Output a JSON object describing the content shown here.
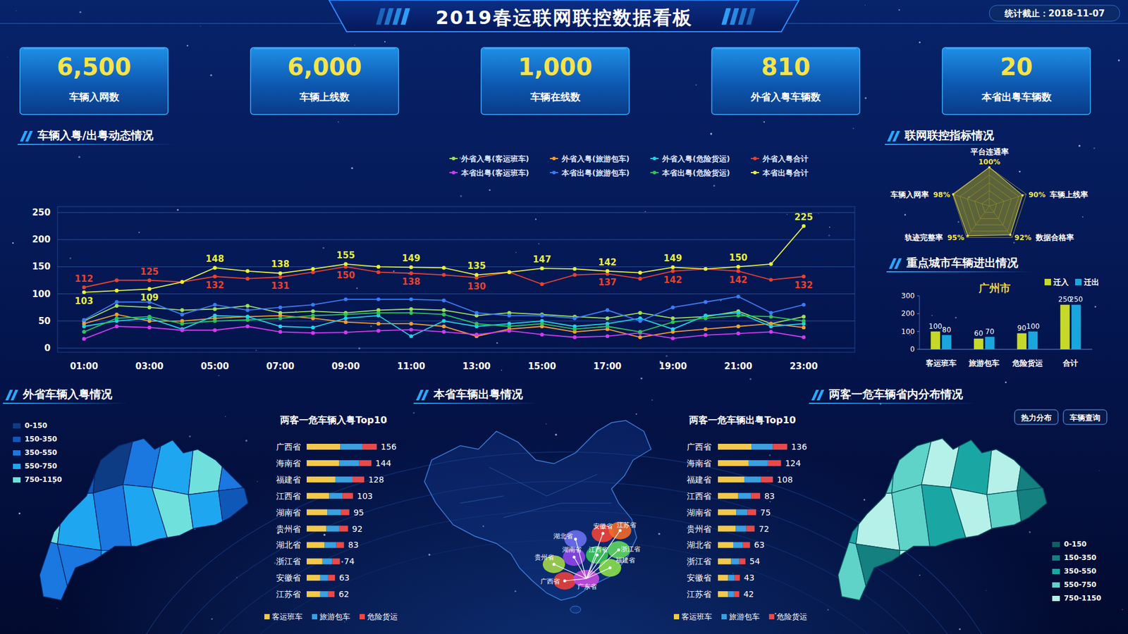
{
  "header": {
    "title": "2019春运联网联控数据看板",
    "date_label": "统计截止：2018-11-07"
  },
  "kpis": [
    {
      "value": 6500,
      "value_label": "6,500",
      "label": "车辆入网数"
    },
    {
      "value": 6000,
      "value_label": "6,000",
      "label": "车辆上线数"
    },
    {
      "value": 1000,
      "value_label": "1,000",
      "label": "车辆在线数"
    },
    {
      "value": 810,
      "label": "外省入粤车辆数"
    },
    {
      "value": 20,
      "label": "本省出粤车辆数"
    }
  ],
  "chart_data": [
    {
      "type": "line",
      "title": "车辆入粤/出粤动态情况",
      "categories": [
        "01:00",
        null,
        "03:00",
        null,
        "05:00",
        null,
        "07:00",
        null,
        "09:00",
        null,
        "11:00",
        null,
        "13:00",
        null,
        "15:00",
        null,
        "17:00",
        null,
        "19:00",
        null,
        "21:00",
        null,
        "23:00"
      ],
      "series": [
        {
          "name": "外省入粤(客运班车)",
          "color": "#9be15d",
          "marker": "circle",
          "values": [
            50,
            78,
            75,
            70,
            72,
            78,
            65,
            68,
            65,
            70,
            72,
            70,
            60,
            65,
            62,
            58,
            55,
            65,
            55,
            58,
            68,
            45,
            58
          ]
        },
        {
          "name": "外省入粤(旅游包车)",
          "color": "#f0a030",
          "marker": "circle",
          "values": [
            45,
            62,
            50,
            50,
            55,
            58,
            60,
            55,
            48,
            45,
            45,
            40,
            22,
            35,
            40,
            30,
            35,
            20,
            30,
            35,
            40,
            45,
            38
          ]
        },
        {
          "name": "外省入粤(危险货运)",
          "color": "#22d3e6",
          "marker": "circle",
          "values": [
            40,
            50,
            55,
            35,
            60,
            58,
            40,
            38,
            55,
            60,
            22,
            50,
            40,
            45,
            50,
            40,
            45,
            55,
            35,
            60,
            65,
            40,
            45
          ]
        },
        {
          "name": "外省入粤合计",
          "color": "#e8432e",
          "marker": "circle",
          "data_labels": true,
          "values": [
            112,
            125,
            125,
            122,
            132,
            128,
            131,
            140,
            150,
            140,
            138,
            135,
            130,
            140,
            118,
            135,
            137,
            128,
            142,
            146,
            142,
            126,
            132
          ],
          "value_labels": [
            "112",
            null,
            "125",
            null,
            "132",
            null,
            "131",
            null,
            "150",
            null,
            "138",
            null,
            "130",
            null,
            null,
            null,
            "137",
            null,
            "142",
            null,
            "142",
            null,
            "132"
          ]
        },
        {
          "name": "本省出粤(客运班车)",
          "color": "#d23cf0",
          "marker": "circle",
          "values": [
            17,
            40,
            38,
            33,
            33,
            40,
            30,
            28,
            29,
            32,
            34,
            30,
            25,
            32,
            25,
            20,
            22,
            28,
            18,
            24,
            27,
            30,
            20
          ]
        },
        {
          "name": "本省出粤(旅游包车)",
          "color": "#3b7cf5",
          "marker": "circle",
          "values": [
            52,
            85,
            85,
            62,
            80,
            70,
            75,
            80,
            90,
            90,
            90,
            88,
            65,
            60,
            60,
            55,
            70,
            50,
            75,
            85,
            95,
            65,
            80
          ]
        },
        {
          "name": "本省出粤(危险货运)",
          "color": "#2ec45a",
          "marker": "circle",
          "values": [
            30,
            55,
            58,
            45,
            50,
            52,
            55,
            60,
            62,
            65,
            65,
            62,
            45,
            40,
            45,
            35,
            40,
            30,
            48,
            55,
            60,
            58,
            50
          ]
        },
        {
          "name": "本省出粤合计",
          "color": "#e8f23c",
          "marker": "circle",
          "data_labels": true,
          "values": [
            103,
            106,
            109,
            122,
            148,
            142,
            138,
            146,
            155,
            150,
            149,
            148,
            135,
            140,
            147,
            146,
            142,
            139,
            149,
            146,
            150,
            155,
            225
          ],
          "value_labels": [
            "103",
            null,
            "109",
            null,
            "148",
            null,
            "138",
            null,
            "155",
            null,
            "149",
            null,
            "135",
            null,
            "147",
            null,
            "142",
            null,
            "149",
            null,
            "150",
            null,
            "225"
          ]
        }
      ],
      "ylim": [
        0,
        250
      ],
      "yticks": [
        0,
        50,
        100,
        150,
        200,
        250
      ],
      "grid": true,
      "legend": "top"
    },
    {
      "type": "radar",
      "title": "联网联控指标情况",
      "categories": [
        "平台连通率",
        "车辆上线率",
        "数据合格率",
        "轨迹完整率",
        "车辆入网率"
      ],
      "values": [
        100,
        90,
        92,
        95,
        98
      ],
      "value_labels": [
        "100%",
        "90%",
        "92%",
        "95%",
        "98%"
      ],
      "data_labels": true,
      "ylim": [
        0,
        100
      ],
      "yticks": [
        20,
        40,
        60,
        80,
        100
      ],
      "grid": true,
      "tick_labels": false,
      "color": "#8a8a2a"
    },
    {
      "type": "bar",
      "title": "重点城市车辆进出情况",
      "subtitle": "广州市",
      "categories": [
        "客运班车",
        "旅游包车",
        "危险货运",
        "合计"
      ],
      "series": [
        {
          "name": "迁入",
          "color": "#c6d92a",
          "values": [
            100,
            60,
            90,
            250
          ]
        },
        {
          "name": "迁出",
          "color": "#1aa6dc",
          "values": [
            80,
            70,
            100,
            250
          ]
        }
      ],
      "ylim": [
        0,
        300
      ],
      "yticks": [
        0,
        100,
        200,
        300
      ],
      "data_labels": true,
      "legend": "top-right",
      "grid": false
    },
    {
      "type": "choropleth",
      "title": "外省车辆入粤情况",
      "legend": "top-left",
      "color_bins": [
        {
          "min": 0,
          "max": 150,
          "label": "0-150",
          "color": "#0d3c85"
        },
        {
          "min": 150,
          "max": 350,
          "label": "150-350",
          "color": "#1058b8"
        },
        {
          "min": 350,
          "max": 550,
          "label": "350-550",
          "color": "#1a78e0"
        },
        {
          "min": 550,
          "max": 750,
          "label": "550-750",
          "color": "#1fa6f0"
        },
        {
          "min": 750,
          "max": 1150,
          "label": "750-1150",
          "color": "#6fe0dc"
        }
      ],
      "values": [
        620,
        300,
        120,
        450,
        700,
        900,
        500,
        800,
        650,
        400,
        560,
        980,
        720,
        300,
        420,
        380,
        600,
        1000,
        820,
        250,
        150
      ]
    },
    {
      "type": "bar",
      "orientation": "horizontal",
      "stacked": true,
      "title": "两客一危车辆入粤Top10",
      "categories": [
        "广西省",
        "海南省",
        "福建省",
        "江西省",
        "湖南省",
        "贵州省",
        "湖北省",
        "浙江省",
        "安徽省",
        "江苏省"
      ],
      "series": [
        {
          "name": "客运班车",
          "color": "#f2c94c",
          "values": [
            75,
            72,
            64,
            50,
            46,
            44,
            40,
            35,
            30,
            30
          ]
        },
        {
          "name": "旅游包车",
          "color": "#3aa0e0",
          "values": [
            49,
            45,
            38,
            30,
            30,
            28,
            26,
            22,
            18,
            18
          ]
        },
        {
          "name": "危险货运",
          "color": "#e84a4a",
          "values": [
            32,
            27,
            26,
            23,
            19,
            20,
            17,
            17,
            15,
            14
          ]
        }
      ],
      "totals": [
        156,
        144,
        128,
        103,
        95,
        92,
        83,
        74,
        63,
        62
      ],
      "xlim": [
        0,
        170
      ],
      "tick_labels": "y",
      "legend": "bottom"
    },
    {
      "type": "flow_map",
      "title": "本省车辆出粤情况",
      "origin": "广东省",
      "destinations": [
        "湖北省",
        "安徽省",
        "江苏省",
        "湖南省",
        "江西省",
        "浙江省",
        "贵州省",
        "福建省",
        "广西省"
      ]
    },
    {
      "type": "bar",
      "orientation": "horizontal",
      "stacked": true,
      "title": "两客一危车辆出粤Top10",
      "categories": [
        "广西省",
        "海南省",
        "福建省",
        "江西省",
        "湖南省",
        "贵州省",
        "湖北省",
        "浙江省",
        "安徽省",
        "江苏省"
      ],
      "series": [
        {
          "name": "客运班车",
          "color": "#f2c94c",
          "values": [
            66,
            60,
            52,
            40,
            36,
            35,
            30,
            26,
            20,
            20
          ]
        },
        {
          "name": "旅游包车",
          "color": "#3aa0e0",
          "values": [
            42,
            38,
            33,
            25,
            22,
            21,
            19,
            16,
            13,
            12
          ]
        },
        {
          "name": "危险货运",
          "color": "#e84a4a",
          "values": [
            28,
            26,
            23,
            18,
            17,
            16,
            14,
            12,
            10,
            10
          ]
        }
      ],
      "totals": [
        136,
        124,
        108,
        83,
        75,
        72,
        63,
        54,
        43,
        42
      ],
      "xlim": [
        0,
        150
      ],
      "tick_labels": "y",
      "legend": "bottom"
    },
    {
      "type": "choropleth",
      "title": "两客一危车辆省内分布情况",
      "buttons": [
        "热力分布",
        "车辆查询"
      ],
      "legend": "bottom-right",
      "color_bins": [
        {
          "min": 0,
          "max": 150,
          "label": "0-150",
          "color": "#0e5f63"
        },
        {
          "min": 150,
          "max": 350,
          "label": "150-350",
          "color": "#14807f"
        },
        {
          "min": 350,
          "max": 550,
          "label": "350-550",
          "color": "#1aa7a3"
        },
        {
          "min": 550,
          "max": 750,
          "label": "550-750",
          "color": "#5fd3c8"
        },
        {
          "min": 750,
          "max": 1150,
          "label": "750-1150",
          "color": "#b5f1e8"
        }
      ],
      "values": [
        900,
        700,
        620,
        800,
        450,
        880,
        300,
        500,
        960,
        720,
        400,
        850,
        560,
        200,
        650,
        300,
        780,
        600,
        380,
        450,
        120
      ]
    }
  ]
}
